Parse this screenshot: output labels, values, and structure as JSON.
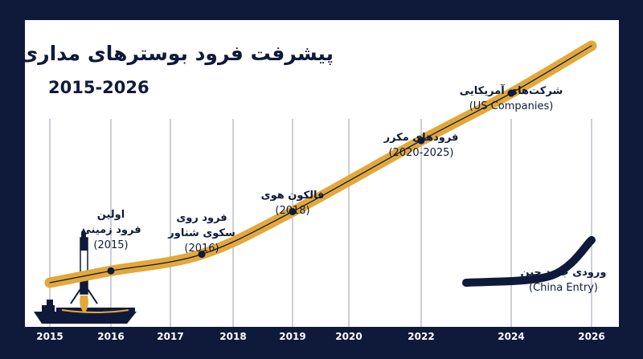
{
  "header": {
    "title": "پیشرفت فرود بوسترهای مداری",
    "subtitle": "2015-2026"
  },
  "colors": {
    "background": "#0f1a3a",
    "panel": "#ffffff",
    "main_curve": "#e2a83a",
    "china_curve": "#0f1a3a",
    "grid": "#9aa0ad"
  },
  "icons": [
    "rocket-icon",
    "ship-icon"
  ],
  "chart_data": {
    "type": "line",
    "x_ticks": [
      "2015",
      "2016",
      "2017",
      "2018",
      "2019",
      "2020",
      "2022",
      "2024",
      "2026"
    ],
    "series": [
      {
        "points": [
          {
            "x": 2015,
            "y": 0.0
          },
          {
            "x": 2016,
            "y": 0.05
          },
          {
            "x": 2017.5,
            "y": 0.12
          },
          {
            "x": 2019,
            "y": 0.3
          },
          {
            "x": 2022,
            "y": 0.6
          },
          {
            "x": 2024,
            "y": 0.8
          },
          {
            "x": 2026,
            "y": 1.0
          }
        ]
      },
      {
        "points": [
          {
            "x": 2023,
            "y": 0.0
          },
          {
            "x": 2025,
            "y": 0.03
          },
          {
            "x": 2026,
            "y": 0.18
          }
        ]
      }
    ],
    "milestones": [
      {
        "year_pos": 2016,
        "level": 0.05,
        "fa_lines": [
          "اولین",
          "فرود زمینی"
        ],
        "en": "(2015)"
      },
      {
        "year_pos": 2017.5,
        "level": 0.12,
        "fa_lines": [
          "فرود روی",
          "سکوی شناور"
        ],
        "en": "(2016)"
      },
      {
        "year_pos": 2019,
        "level": 0.3,
        "fa_lines": [
          "فالکون هوی"
        ],
        "en": "(2018)"
      },
      {
        "year_pos": 2022,
        "level": 0.6,
        "fa_lines": [
          "فرودهای مکرر"
        ],
        "en": "(2020-2025)"
      },
      {
        "year_pos": 2024,
        "level": 0.8,
        "fa_lines": [
          "شرکت‌های آمریکایی"
        ],
        "en": "(US Companies)"
      },
      {
        "year_pos": 2025.3,
        "level": 0.06,
        "fa_lines": [
          "ورودی جدید چین"
        ],
        "en": "(China Entry)"
      }
    ]
  }
}
